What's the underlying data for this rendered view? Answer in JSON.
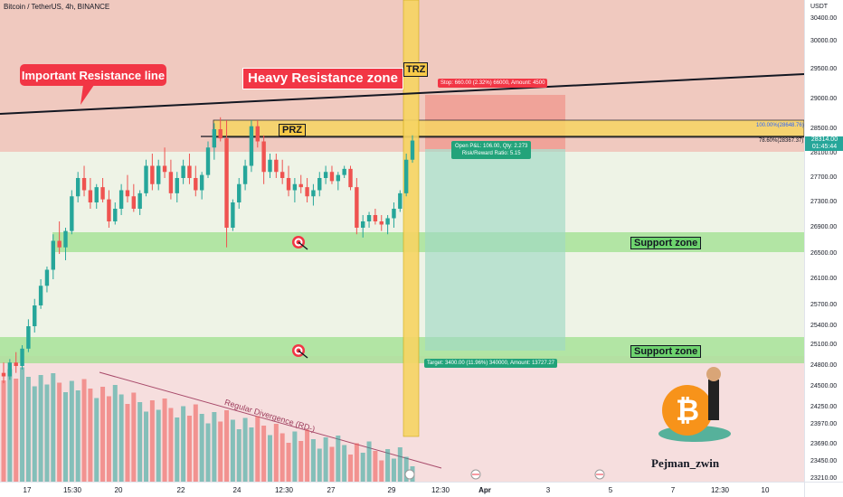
{
  "header": {
    "symbol_title": "Bitcoin / TetherUS, 4h, BINANCE"
  },
  "annotations": {
    "callout": "Important Resistance line",
    "heavy_zone": "Heavy Resistance zone",
    "trz": "TRZ",
    "prz": "PRZ",
    "stop": "Stop: 660.00 (2.32%) 66000, Amount: 4500",
    "open_line1": "Open P&L: 106.00, Qty: 2.273",
    "open_line2": "Risk/Reward Ratio: 5.15",
    "target": "Target: 3400.00 (11.96%) 340000, Amount: 13727.27",
    "fib_100": "100.00%(28648.76)",
    "fib_786": "78.60%(28367.37)",
    "support_1": "Support zone",
    "support_2": "Support zone",
    "divergence": "Regular Divergence (RD-)",
    "watermark": "Pejman_zwin"
  },
  "price_axis": {
    "currency": "USDT",
    "ticks": [
      "30400.00",
      "30000.00",
      "29500.00",
      "29000.00",
      "28500.00",
      "28100.00",
      "27700.00",
      "27300.00",
      "26900.00",
      "26500.00",
      "26100.00",
      "25700.00",
      "25400.00",
      "25100.00",
      "24800.00",
      "24500.00",
      "24250.00",
      "23970.00",
      "23690.00",
      "23450.00",
      "23210.00"
    ],
    "last_price": "28314.00",
    "countdown": "01:45:44"
  },
  "time_axis": {
    "ticks": [
      "17",
      "15:30",
      "20",
      "22",
      "24",
      "12:30",
      "27",
      "29",
      "12:30",
      "Apr",
      "3",
      "5",
      "7",
      "12:30",
      "10"
    ]
  },
  "colors": {
    "bull": "#26a69a",
    "bear": "#ef5350",
    "resistance_bg": "#f4cdc4",
    "support_bg": "#b9e8a8",
    "trz_fill": "#f7d563",
    "accent_red": "#f23645",
    "accent_green": "#22a37a"
  },
  "chart_data": {
    "type": "candlestick",
    "candles": [
      [
        24700,
        24850,
        24550,
        24650
      ],
      [
        24650,
        24900,
        24600,
        24850
      ],
      [
        24850,
        25000,
        24700,
        24800
      ],
      [
        24800,
        25100,
        24750,
        25050
      ],
      [
        25050,
        25500,
        25000,
        25400
      ],
      [
        25400,
        25800,
        25300,
        25700
      ],
      [
        25700,
        26100,
        25650,
        26000
      ],
      [
        26000,
        26300,
        25900,
        26250
      ],
      [
        26250,
        26800,
        26100,
        26700
      ],
      [
        26700,
        27000,
        26500,
        26600
      ],
      [
        26600,
        26900,
        26400,
        26850
      ],
      [
        26850,
        27500,
        26800,
        27400
      ],
      [
        27400,
        27800,
        27300,
        27700
      ],
      [
        27700,
        27900,
        27400,
        27500
      ],
      [
        27500,
        27700,
        27200,
        27300
      ],
      [
        27300,
        27600,
        27200,
        27550
      ],
      [
        27550,
        27700,
        27300,
        27350
      ],
      [
        27350,
        27500,
        26900,
        27000
      ],
      [
        27000,
        27300,
        26950,
        27200
      ],
      [
        27200,
        27600,
        27100,
        27500
      ],
      [
        27500,
        27750,
        27300,
        27400
      ],
      [
        27400,
        27600,
        27150,
        27200
      ],
      [
        27200,
        27500,
        27100,
        27450
      ],
      [
        27450,
        28000,
        27400,
        27900
      ],
      [
        27900,
        28100,
        27500,
        27600
      ],
      [
        27600,
        28000,
        27500,
        27900
      ],
      [
        27900,
        28200,
        27700,
        27800
      ],
      [
        27800,
        28000,
        27350,
        27450
      ],
      [
        27450,
        27800,
        27300,
        27700
      ],
      [
        27700,
        28000,
        27600,
        27900
      ],
      [
        27900,
        28100,
        27600,
        27700
      ],
      [
        27700,
        27900,
        27400,
        27500
      ],
      [
        27500,
        27800,
        27350,
        27750
      ],
      [
        27750,
        28300,
        27700,
        28200
      ],
      [
        28200,
        28600,
        28000,
        28500
      ],
      [
        28500,
        28700,
        28300,
        28350
      ],
      [
        28350,
        28650,
        26600,
        26900
      ],
      [
        26900,
        27350,
        26850,
        27300
      ],
      [
        27300,
        27700,
        27200,
        27600
      ],
      [
        27600,
        28000,
        27500,
        27900
      ],
      [
        27900,
        28650,
        27800,
        28550
      ],
      [
        28550,
        28650,
        28200,
        28300
      ],
      [
        28300,
        28400,
        27600,
        27800
      ],
      [
        27800,
        28100,
        27700,
        28000
      ],
      [
        28000,
        28100,
        27700,
        27800
      ],
      [
        27800,
        28000,
        27600,
        27700
      ],
      [
        27700,
        27900,
        27400,
        27500
      ],
      [
        27500,
        27700,
        27300,
        27600
      ],
      [
        27600,
        27750,
        27450,
        27550
      ],
      [
        27550,
        27700,
        27300,
        27400
      ],
      [
        27400,
        27600,
        27250,
        27500
      ],
      [
        27500,
        27800,
        27400,
        27700
      ],
      [
        27700,
        27900,
        27600,
        27800
      ],
      [
        27800,
        27900,
        27600,
        27650
      ],
      [
        27650,
        27800,
        27500,
        27750
      ],
      [
        27750,
        27900,
        27700,
        27850
      ],
      [
        27850,
        27900,
        27500,
        27550
      ],
      [
        27550,
        27700,
        26800,
        26900
      ],
      [
        26900,
        27100,
        26750,
        27000
      ],
      [
        27000,
        27150,
        26900,
        27100
      ],
      [
        27100,
        27200,
        26950,
        27000
      ],
      [
        27000,
        27100,
        26850,
        26950
      ],
      [
        26950,
        27100,
        26800,
        27050
      ],
      [
        27050,
        27300,
        26900,
        27200
      ],
      [
        27200,
        27500,
        27150,
        27450
      ],
      [
        27450,
        28100,
        27400,
        28000
      ],
      [
        28000,
        28400,
        27950,
        28314
      ]
    ],
    "volume_trend": "declining",
    "resistance_line": "descending-right up",
    "ylim": [
      23210,
      30400
    ]
  }
}
